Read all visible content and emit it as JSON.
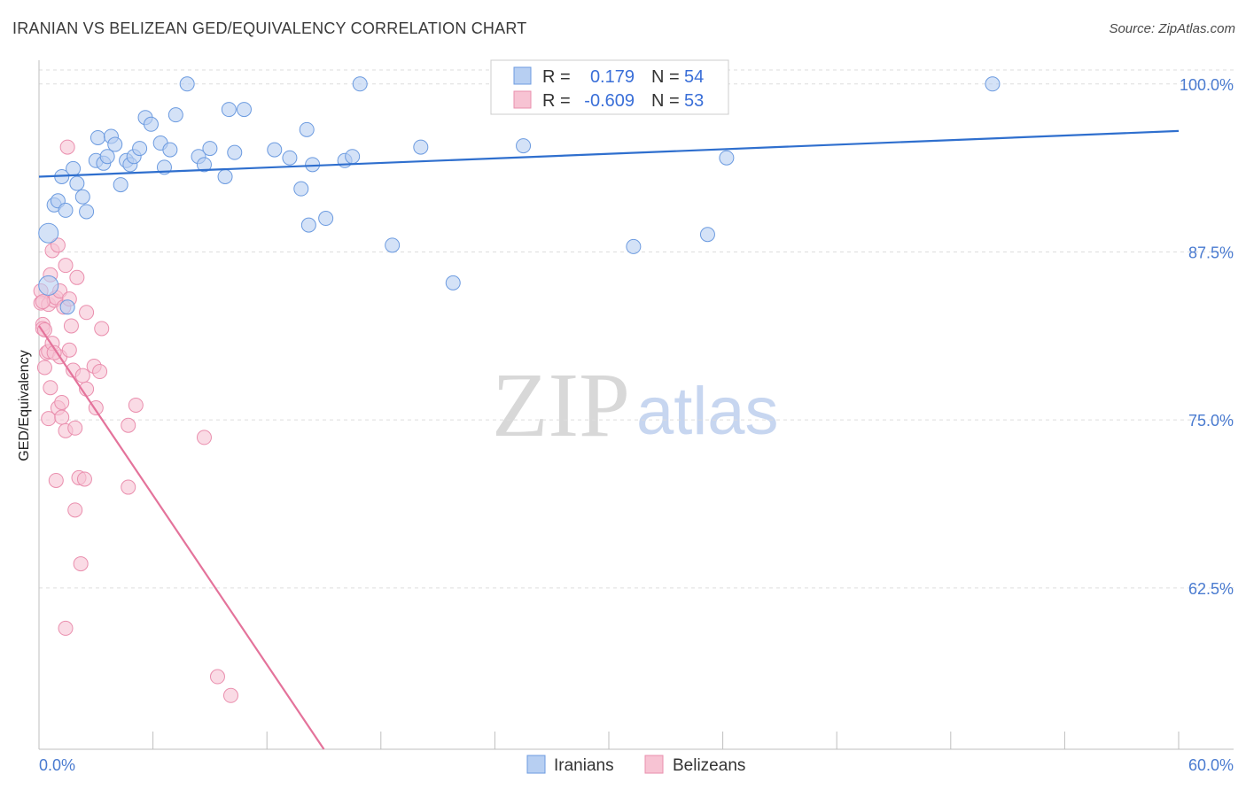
{
  "header": {
    "title": "IRANIAN VS BELIZEAN GED/EQUIVALENCY CORRELATION CHART",
    "source": "Source: ZipAtlas.com"
  },
  "watermark": {
    "zip": "ZIP",
    "atlas": "atlas"
  },
  "colors": {
    "blue_fill": "#b7cff2",
    "blue_stroke": "#6c9be0",
    "blue_line": "#2f6fce",
    "pink_fill": "#f7c3d3",
    "pink_stroke": "#ea8fae",
    "pink_line": "#e4739b",
    "tick": "#4a7bd0",
    "grid": "#dddddd"
  },
  "legend": {
    "rows": [
      {
        "r_label": "R =",
        "r_value": "0.179",
        "n_label": "N =",
        "n_value": "54"
      },
      {
        "r_label": "R =",
        "r_value": "-0.609",
        "n_label": "N =",
        "n_value": "53"
      }
    ]
  },
  "bottom_legend": {
    "series1": "Iranians",
    "series2": "Belizeans"
  },
  "chart_data": {
    "type": "scatter",
    "title": "IRANIAN VS BELIZEAN GED/EQUIVALENCY CORRELATION CHART",
    "xlabel": "",
    "ylabel": "GED/Equivalency",
    "xlim": [
      0,
      60
    ],
    "ylim": [
      50.5,
      101.5
    ],
    "x_tick_labels": {
      "min": "0.0%",
      "max": "60.0%"
    },
    "y_ticks": [
      62.5,
      75.0,
      87.5,
      100.0
    ],
    "y_tick_labels": [
      "62.5%",
      "75.0%",
      "87.5%",
      "100.0%"
    ],
    "series": [
      {
        "name": "Iranians",
        "r": 0.179,
        "n": 54,
        "trend": {
          "x": [
            0,
            60
          ],
          "y": [
            93.1,
            96.5
          ]
        },
        "points": [
          [
            0.5,
            88.9
          ],
          [
            0.5,
            85.0
          ],
          [
            0.8,
            91.0
          ],
          [
            1.0,
            91.3
          ],
          [
            1.2,
            93.1
          ],
          [
            1.4,
            90.6
          ],
          [
            1.5,
            83.4
          ],
          [
            1.8,
            93.7
          ],
          [
            2.0,
            92.6
          ],
          [
            2.3,
            91.6
          ],
          [
            2.5,
            90.5
          ],
          [
            3.0,
            94.3
          ],
          [
            3.1,
            96.0
          ],
          [
            3.4,
            94.1
          ],
          [
            3.6,
            94.6
          ],
          [
            3.8,
            96.1
          ],
          [
            4.0,
            95.5
          ],
          [
            4.3,
            92.5
          ],
          [
            4.6,
            94.3
          ],
          [
            4.8,
            94.0
          ],
          [
            5.0,
            94.6
          ],
          [
            5.3,
            95.2
          ],
          [
            5.6,
            97.5
          ],
          [
            5.9,
            97.0
          ],
          [
            6.4,
            95.6
          ],
          [
            6.6,
            93.8
          ],
          [
            6.9,
            95.1
          ],
          [
            7.2,
            97.7
          ],
          [
            7.8,
            100.0
          ],
          [
            8.4,
            94.6
          ],
          [
            8.7,
            94.0
          ],
          [
            9.0,
            95.2
          ],
          [
            9.8,
            93.1
          ],
          [
            10.0,
            98.1
          ],
          [
            10.3,
            94.9
          ],
          [
            10.8,
            98.1
          ],
          [
            12.4,
            95.1
          ],
          [
            13.2,
            94.5
          ],
          [
            13.8,
            92.2
          ],
          [
            14.1,
            96.6
          ],
          [
            14.2,
            89.5
          ],
          [
            14.4,
            94.0
          ],
          [
            15.1,
            90.0
          ],
          [
            16.1,
            94.3
          ],
          [
            16.5,
            94.6
          ],
          [
            16.9,
            100.0
          ],
          [
            18.6,
            88.0
          ],
          [
            20.1,
            95.3
          ],
          [
            21.8,
            85.2
          ],
          [
            25.5,
            95.4
          ],
          [
            31.3,
            87.9
          ],
          [
            35.2,
            88.8
          ],
          [
            36.2,
            94.5
          ],
          [
            50.2,
            100.0
          ]
        ]
      },
      {
        "name": "Belizeans",
        "r": -0.609,
        "n": 53,
        "trend": {
          "x": [
            0,
            15
          ],
          "y": [
            82.0,
            50.5
          ]
        },
        "points": [
          [
            0.1,
            84.6
          ],
          [
            0.1,
            83.7
          ],
          [
            0.2,
            82.1
          ],
          [
            0.2,
            81.8
          ],
          [
            0.3,
            78.9
          ],
          [
            0.3,
            81.7
          ],
          [
            0.4,
            80.0
          ],
          [
            0.5,
            80.1
          ],
          [
            0.5,
            83.6
          ],
          [
            0.5,
            75.1
          ],
          [
            0.6,
            85.8
          ],
          [
            0.6,
            77.4
          ],
          [
            0.7,
            87.6
          ],
          [
            0.7,
            80.7
          ],
          [
            0.8,
            83.9
          ],
          [
            0.9,
            84.1
          ],
          [
            0.9,
            70.5
          ],
          [
            1.0,
            88.0
          ],
          [
            1.0,
            75.9
          ],
          [
            1.1,
            84.6
          ],
          [
            1.1,
            79.7
          ],
          [
            1.2,
            76.3
          ],
          [
            1.2,
            75.2
          ],
          [
            1.3,
            83.4
          ],
          [
            1.4,
            86.5
          ],
          [
            1.4,
            74.2
          ],
          [
            1.4,
            59.5
          ],
          [
            1.5,
            95.3
          ],
          [
            1.6,
            84.0
          ],
          [
            1.6,
            80.2
          ],
          [
            1.7,
            82.0
          ],
          [
            1.8,
            78.7
          ],
          [
            1.9,
            74.4
          ],
          [
            1.9,
            68.3
          ],
          [
            2.0,
            85.6
          ],
          [
            2.1,
            70.7
          ],
          [
            2.2,
            64.3
          ],
          [
            2.3,
            78.3
          ],
          [
            2.4,
            70.6
          ],
          [
            2.5,
            77.3
          ],
          [
            2.5,
            83.0
          ],
          [
            2.9,
            79.0
          ],
          [
            3.0,
            75.9
          ],
          [
            3.2,
            78.6
          ],
          [
            3.3,
            81.8
          ],
          [
            4.7,
            74.6
          ],
          [
            4.7,
            70.0
          ],
          [
            5.1,
            76.1
          ],
          [
            8.7,
            73.7
          ],
          [
            9.4,
            55.9
          ],
          [
            10.1,
            54.5
          ],
          [
            0.2,
            83.8
          ],
          [
            0.8,
            80.0
          ]
        ]
      }
    ]
  }
}
